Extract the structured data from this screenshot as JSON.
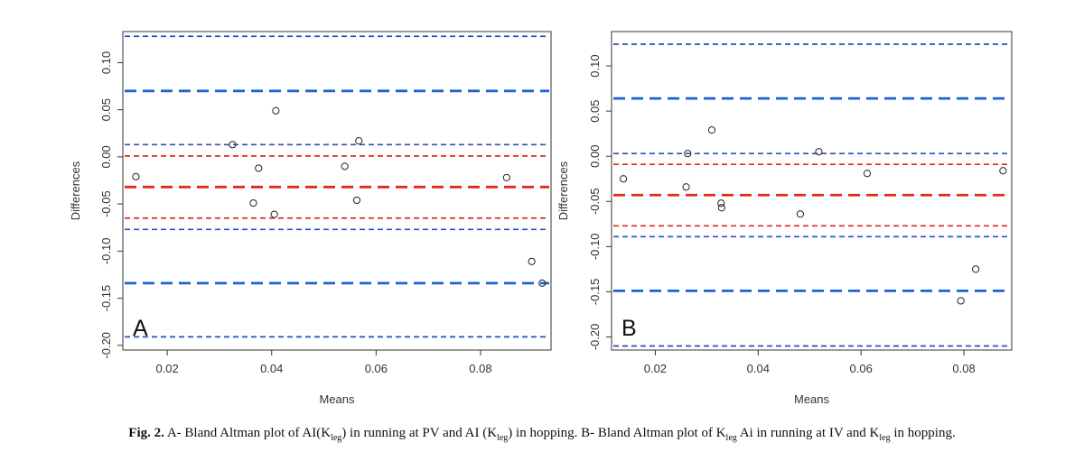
{
  "chart_data": [
    {
      "type": "scatter",
      "panel_label": "A",
      "xlabel": "Means",
      "ylabel": "Differences",
      "xlim": [
        0.0115,
        0.0935
      ],
      "ylim": [
        -0.205,
        0.133
      ],
      "xticks": [
        "0.02",
        "0.04",
        "0.06",
        "0.08"
      ],
      "xtick_values": [
        0.02,
        0.04,
        0.06,
        0.08
      ],
      "yticks": [
        "-0.20",
        "-0.15",
        "-0.10",
        "-0.05",
        "0.00",
        "0.05",
        "0.10"
      ],
      "ytick_values": [
        -0.2,
        -0.15,
        -0.1,
        -0.05,
        0.0,
        0.05,
        0.1
      ],
      "points": [
        {
          "x": 0.014,
          "y": -0.021
        },
        {
          "x": 0.0325,
          "y": 0.013
        },
        {
          "x": 0.0365,
          "y": -0.049
        },
        {
          "x": 0.0375,
          "y": -0.012
        },
        {
          "x": 0.0405,
          "y": -0.061
        },
        {
          "x": 0.0408,
          "y": 0.049
        },
        {
          "x": 0.054,
          "y": -0.01
        },
        {
          "x": 0.0563,
          "y": -0.046
        },
        {
          "x": 0.0567,
          "y": 0.017
        },
        {
          "x": 0.085,
          "y": -0.022
        },
        {
          "x": 0.0898,
          "y": -0.111
        },
        {
          "x": 0.0918,
          "y": -0.134
        }
      ],
      "reference_lines": [
        {
          "y": 0.128,
          "color": "#2a4fc2",
          "style": "short-dash"
        },
        {
          "y": 0.07,
          "color": "#1f5fd8",
          "style": "long-dash"
        },
        {
          "y": 0.013,
          "color": "#2a4fc2",
          "style": "short-dash"
        },
        {
          "y": 0.001,
          "color": "#e02a1c",
          "style": "short-dash"
        },
        {
          "y": -0.032,
          "color": "#e02a1c",
          "style": "long-dash"
        },
        {
          "y": -0.065,
          "color": "#e02a1c",
          "style": "short-dash"
        },
        {
          "y": -0.077,
          "color": "#2a4fc2",
          "style": "short-dash"
        },
        {
          "y": -0.134,
          "color": "#1f5fd8",
          "style": "long-dash"
        },
        {
          "y": -0.191,
          "color": "#2a4fc2",
          "style": "short-dash"
        }
      ]
    },
    {
      "type": "scatter",
      "panel_label": "B",
      "xlabel": "Means",
      "ylabel": "Differences",
      "xlim": [
        0.0115,
        0.0893
      ],
      "ylim": [
        -0.2145,
        0.138
      ],
      "xticks": [
        "0.02",
        "0.04",
        "0.06",
        "0.08"
      ],
      "xtick_values": [
        0.02,
        0.04,
        0.06,
        0.08
      ],
      "yticks": [
        "-0.20",
        "-0.15",
        "-0.10",
        "-0.05",
        "0.00",
        "0.05",
        "0.10"
      ],
      "ytick_values": [
        -0.2,
        -0.15,
        -0.1,
        -0.05,
        0.0,
        0.05,
        0.1
      ],
      "points": [
        {
          "x": 0.0138,
          "y": -0.025
        },
        {
          "x": 0.026,
          "y": -0.034
        },
        {
          "x": 0.0263,
          "y": 0.003
        },
        {
          "x": 0.031,
          "y": 0.029
        },
        {
          "x": 0.0328,
          "y": -0.052
        },
        {
          "x": 0.0329,
          "y": -0.057
        },
        {
          "x": 0.0482,
          "y": -0.064
        },
        {
          "x": 0.0518,
          "y": 0.005
        },
        {
          "x": 0.0612,
          "y": -0.019
        },
        {
          "x": 0.0794,
          "y": -0.16
        },
        {
          "x": 0.0823,
          "y": -0.125
        },
        {
          "x": 0.0876,
          "y": -0.016
        }
      ],
      "reference_lines": [
        {
          "y": 0.124,
          "color": "#2a4fc2",
          "style": "short-dash"
        },
        {
          "y": 0.064,
          "color": "#1f5fd8",
          "style": "long-dash"
        },
        {
          "y": 0.003,
          "color": "#2a4fc2",
          "style": "short-dash"
        },
        {
          "y": -0.009,
          "color": "#e02a1c",
          "style": "short-dash"
        },
        {
          "y": -0.043,
          "color": "#e02a1c",
          "style": "long-dash"
        },
        {
          "y": -0.077,
          "color": "#e02a1c",
          "style": "short-dash"
        },
        {
          "y": -0.089,
          "color": "#2a4fc2",
          "style": "short-dash"
        },
        {
          "y": -0.149,
          "color": "#1f5fd8",
          "style": "long-dash"
        },
        {
          "y": -0.21,
          "color": "#2a4fc2",
          "style": "short-dash"
        }
      ]
    }
  ],
  "caption": {
    "label": "Fig. 2.",
    "text_a1": "A- Bland Altman plot of AI(K",
    "sub_a1": "leg",
    "text_a2": ") in running at PV and AI (K",
    "sub_a2": "leg",
    "text_a3": ") in hopping. B- Bland Altman plot of K",
    "sub_b1": "leg",
    "text_b2": " Ai in running at IV and K",
    "sub_b2": "leg",
    "text_b3": " in hopping."
  }
}
